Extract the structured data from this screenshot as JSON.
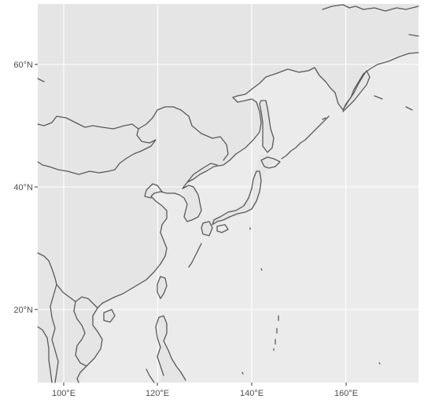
{
  "map": {
    "type": "geographic-map",
    "region": "East Asia / Northwest Pacific",
    "projection": "equirectangular",
    "lon_range": [
      95.5,
      174.5
    ],
    "lat_range": [
      8.5,
      69.5
    ],
    "x_ticks": [
      {
        "value": 100,
        "label": "100°E"
      },
      {
        "value": 120,
        "label": "120°E"
      },
      {
        "value": 140,
        "label": "140°E"
      },
      {
        "value": 160,
        "label": "160°E"
      }
    ],
    "y_ticks": [
      {
        "value": 20,
        "label": "20°N"
      },
      {
        "value": 40,
        "label": "40°N"
      },
      {
        "value": 60,
        "label": "60°N"
      }
    ],
    "grid": true,
    "colors": {
      "panel": "#ebebeb",
      "land": "#e5e5e5",
      "coastline": "#595959",
      "grid": "#ffffff",
      "tick_text": "#4d4d4d"
    }
  }
}
